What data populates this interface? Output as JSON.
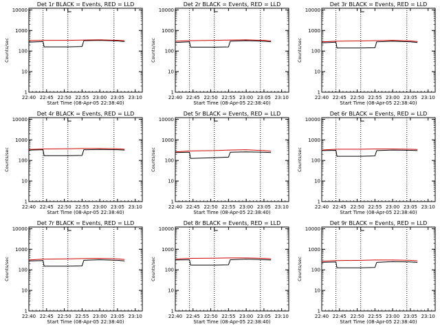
{
  "chart_data": [
    {
      "type": "line",
      "title": "Det 1r BLACK = Events, RED = LLD",
      "xlabel": "Start Time (08-Apr-05 22:38:40)",
      "ylabel": "Counts/sec",
      "y_scale": "log",
      "ylim": [
        1,
        12000
      ],
      "xlim": [
        "22:40",
        "23:12"
      ],
      "x_ticks": [
        "22:40",
        "22:45",
        "22:50",
        "22:55",
        "23:00",
        "23:05",
        "23:10"
      ],
      "y_ticks": [
        "1",
        "10",
        "100",
        "1000",
        "10000"
      ],
      "vlines": [
        "22:44",
        "22:51",
        "23:04"
      ],
      "marker_at": "22:51",
      "series": [
        {
          "name": "Events",
          "color": "#000000",
          "x": [
            "22:40",
            "22:44",
            "22:44.3",
            "22:51",
            "22:55",
            "22:55.5",
            "23:00",
            "23:05",
            "23:07"
          ],
          "values": [
            270,
            290,
            160,
            160,
            165,
            320,
            330,
            310,
            290
          ]
        },
        {
          "name": "LLD",
          "color": "#cc0000",
          "x": [
            "22:40",
            "22:44",
            "22:51",
            "22:55",
            "23:00",
            "23:05",
            "23:07"
          ],
          "values": [
            320,
            330,
            330,
            340,
            350,
            330,
            320
          ]
        }
      ]
    },
    {
      "type": "line",
      "title": "Det 2r BLACK = Events, RED = LLD",
      "xlabel": "Start Time (08-Apr-05 22:38:40)",
      "ylabel": "Counts/sec",
      "y_scale": "log",
      "ylim": [
        1,
        12000
      ],
      "xlim": [
        "22:40",
        "23:12"
      ],
      "x_ticks": [
        "22:40",
        "22:45",
        "22:50",
        "22:55",
        "23:00",
        "23:05",
        "23:10"
      ],
      "y_ticks": [
        "1",
        "10",
        "100",
        "1000",
        "10000"
      ],
      "vlines": [
        "22:44",
        "22:51",
        "23:04"
      ],
      "marker_at": "22:51",
      "series": [
        {
          "name": "Events",
          "color": "#000000",
          "x": [
            "22:40",
            "22:44",
            "22:44.3",
            "22:51",
            "22:55",
            "22:55.5",
            "23:00",
            "23:05",
            "23:07"
          ],
          "values": [
            260,
            280,
            155,
            155,
            160,
            300,
            320,
            300,
            280
          ]
        },
        {
          "name": "LLD",
          "color": "#cc0000",
          "x": [
            "22:40",
            "22:44",
            "22:51",
            "22:55",
            "23:00",
            "23:05",
            "23:07"
          ],
          "values": [
            300,
            320,
            330,
            340,
            350,
            330,
            310
          ]
        }
      ]
    },
    {
      "type": "line",
      "title": "Det 3r BLACK = Events, RED = LLD",
      "xlabel": "Start Time (08-Apr-05 22:38:40)",
      "ylabel": "Counts/sec",
      "y_scale": "log",
      "ylim": [
        1,
        12000
      ],
      "xlim": [
        "22:40",
        "23:12"
      ],
      "x_ticks": [
        "22:40",
        "22:45",
        "22:50",
        "22:55",
        "23:00",
        "23:05",
        "23:10"
      ],
      "y_ticks": [
        "1",
        "10",
        "100",
        "1000",
        "10000"
      ],
      "vlines": [
        "22:44",
        "22:51",
        "23:04"
      ],
      "marker_at": "22:51",
      "series": [
        {
          "name": "Events",
          "color": "#000000",
          "x": [
            "22:40",
            "22:44",
            "22:44.3",
            "22:51",
            "22:55",
            "22:55.5",
            "23:00",
            "23:05",
            "23:07"
          ],
          "values": [
            250,
            270,
            140,
            140,
            145,
            280,
            300,
            280,
            260
          ]
        },
        {
          "name": "LLD",
          "color": "#cc0000",
          "x": [
            "22:40",
            "22:44",
            "22:51",
            "22:55",
            "23:00",
            "23:05",
            "23:07"
          ],
          "values": [
            280,
            300,
            310,
            320,
            330,
            310,
            290
          ]
        }
      ]
    },
    {
      "type": "line",
      "title": "Det 4r BLACK = Events, RED = LLD",
      "xlabel": "Start Time (08-Apr-05 22:38:40)",
      "ylabel": "Counts/sec",
      "y_scale": "log",
      "ylim": [
        1,
        12000
      ],
      "xlim": [
        "22:40",
        "23:12"
      ],
      "x_ticks": [
        "22:40",
        "22:45",
        "22:50",
        "22:55",
        "23:00",
        "23:05",
        "23:10"
      ],
      "y_ticks": [
        "1",
        "10",
        "100",
        "1000",
        "10000"
      ],
      "vlines": [
        "22:44",
        "22:51",
        "23:04"
      ],
      "marker_at": "22:51",
      "series": [
        {
          "name": "Events",
          "color": "#000000",
          "x": [
            "22:40",
            "22:44",
            "22:44.3",
            "22:51",
            "22:55",
            "22:55.5",
            "23:00",
            "23:05",
            "23:07"
          ],
          "values": [
            320,
            330,
            170,
            170,
            175,
            330,
            340,
            330,
            320
          ]
        },
        {
          "name": "LLD",
          "color": "#cc0000",
          "x": [
            "22:40",
            "22:44",
            "22:51",
            "22:55",
            "23:00",
            "23:05",
            "23:07"
          ],
          "values": [
            340,
            360,
            370,
            380,
            380,
            370,
            350
          ]
        }
      ]
    },
    {
      "type": "line",
      "title": "Det 5r BLACK = Events, RED = LLD",
      "xlabel": "Start Time (08-Apr-05 22:38:40)",
      "ylabel": "Counts/sec",
      "y_scale": "log",
      "ylim": [
        1,
        12000
      ],
      "xlim": [
        "22:40",
        "23:12"
      ],
      "x_ticks": [
        "22:40",
        "22:45",
        "22:50",
        "22:55",
        "23:00",
        "23:05",
        "23:10"
      ],
      "y_ticks": [
        "1",
        "10",
        "100",
        "1000",
        "10000"
      ],
      "vlines": [
        "22:44",
        "22:51",
        "23:04"
      ],
      "marker_at": "22:51",
      "series": [
        {
          "name": "Events",
          "color": "#000000",
          "x": [
            "22:40",
            "22:44",
            "22:44.3",
            "22:51",
            "22:55",
            "22:55.5",
            "23:00",
            "23:05",
            "23:07"
          ],
          "values": [
            240,
            250,
            125,
            135,
            145,
            250,
            260,
            250,
            240
          ]
        },
        {
          "name": "LLD",
          "color": "#cc0000",
          "x": [
            "22:40",
            "22:44",
            "22:51",
            "22:55",
            "23:00",
            "23:05",
            "23:07"
          ],
          "values": [
            260,
            290,
            300,
            320,
            330,
            300,
            280
          ]
        }
      ]
    },
    {
      "type": "line",
      "title": "Det 6r BLACK = Events, RED = LLD",
      "xlabel": "Start Time (08-Apr-05 22:38:40)",
      "ylabel": "Counts/sec",
      "y_scale": "log",
      "ylim": [
        1,
        12000
      ],
      "xlim": [
        "22:40",
        "23:12"
      ],
      "x_ticks": [
        "22:40",
        "22:45",
        "22:50",
        "22:55",
        "23:00",
        "23:05",
        "23:10"
      ],
      "y_ticks": [
        "1",
        "10",
        "100",
        "1000",
        "10000"
      ],
      "vlines": [
        "22:44",
        "22:51",
        "23:04"
      ],
      "marker_at": "22:51",
      "series": [
        {
          "name": "Events",
          "color": "#000000",
          "x": [
            "22:40",
            "22:44",
            "22:44.3",
            "22:51",
            "22:55",
            "22:55.5",
            "23:00",
            "23:05",
            "23:07"
          ],
          "values": [
            300,
            310,
            160,
            160,
            165,
            300,
            320,
            310,
            300
          ]
        },
        {
          "name": "LLD",
          "color": "#cc0000",
          "x": [
            "22:40",
            "22:44",
            "22:51",
            "22:55",
            "23:00",
            "23:05",
            "23:07"
          ],
          "values": [
            320,
            350,
            350,
            360,
            360,
            350,
            340
          ]
        }
      ]
    },
    {
      "type": "line",
      "title": "Det 7r BLACK = Events, RED = LLD",
      "xlabel": "Start Time (08-Apr-05 22:38:40)",
      "ylabel": "Counts/sec",
      "y_scale": "log",
      "ylim": [
        1,
        12000
      ],
      "xlim": [
        "22:40",
        "23:12"
      ],
      "x_ticks": [
        "22:40",
        "22:45",
        "22:50",
        "22:55",
        "23:00",
        "23:05",
        "23:10"
      ],
      "y_ticks": [
        "1",
        "10",
        "100",
        "1000",
        "10000"
      ],
      "vlines": [
        "22:44",
        "22:51",
        "23:04"
      ],
      "marker_at": "22:51",
      "series": [
        {
          "name": "Events",
          "color": "#000000",
          "x": [
            "22:40",
            "22:44",
            "22:44.3",
            "22:51",
            "22:55",
            "22:55.5",
            "23:00",
            "23:05",
            "23:07"
          ],
          "values": [
            270,
            280,
            150,
            150,
            155,
            290,
            310,
            290,
            270
          ]
        },
        {
          "name": "LLD",
          "color": "#cc0000",
          "x": [
            "22:40",
            "22:44",
            "22:51",
            "22:55",
            "23:00",
            "23:05",
            "23:07"
          ],
          "values": [
            300,
            330,
            340,
            350,
            360,
            340,
            320
          ]
        }
      ]
    },
    {
      "type": "line",
      "title": "Det 8r BLACK = Events, RED = LLD",
      "xlabel": "Start Time (08-Apr-05 22:38:40)",
      "ylabel": "Counts/sec",
      "y_scale": "log",
      "ylim": [
        1,
        12000
      ],
      "xlim": [
        "22:40",
        "23:12"
      ],
      "x_ticks": [
        "22:40",
        "22:45",
        "22:50",
        "22:55",
        "23:00",
        "23:05",
        "23:10"
      ],
      "y_ticks": [
        "1",
        "10",
        "100",
        "1000",
        "10000"
      ],
      "vlines": [
        "22:44",
        "22:51",
        "23:04"
      ],
      "marker_at": "22:51",
      "series": [
        {
          "name": "Events",
          "color": "#000000",
          "x": [
            "22:40",
            "22:44",
            "22:44.3",
            "22:51",
            "22:55",
            "22:55.5",
            "23:00",
            "23:05",
            "23:07"
          ],
          "values": [
            300,
            310,
            170,
            170,
            175,
            310,
            330,
            310,
            300
          ]
        },
        {
          "name": "LLD",
          "color": "#cc0000",
          "x": [
            "22:40",
            "22:44",
            "22:51",
            "22:55",
            "23:00",
            "23:05",
            "23:07"
          ],
          "values": [
            330,
            360,
            370,
            380,
            380,
            360,
            340
          ]
        }
      ]
    },
    {
      "type": "line",
      "title": "Det 9r BLACK = Events, RED = LLD",
      "xlabel": "Start Time (08-Apr-05 22:38:40)",
      "ylabel": "Counts/sec",
      "y_scale": "log",
      "ylim": [
        1,
        12000
      ],
      "xlim": [
        "22:40",
        "23:12"
      ],
      "x_ticks": [
        "22:40",
        "22:45",
        "22:50",
        "22:55",
        "23:00",
        "23:05",
        "23:10"
      ],
      "y_ticks": [
        "1",
        "10",
        "100",
        "1000",
        "10000"
      ],
      "vlines": [
        "22:44",
        "22:51",
        "23:04"
      ],
      "marker_at": "22:51",
      "series": [
        {
          "name": "Events",
          "color": "#000000",
          "x": [
            "22:40",
            "22:44",
            "22:44.3",
            "22:51",
            "22:55",
            "22:55.5",
            "23:00",
            "23:05",
            "23:07"
          ],
          "values": [
            230,
            240,
            125,
            125,
            130,
            230,
            250,
            240,
            230
          ]
        },
        {
          "name": "LLD",
          "color": "#cc0000",
          "x": [
            "22:40",
            "22:44",
            "22:51",
            "22:55",
            "23:00",
            "23:05",
            "23:07"
          ],
          "values": [
            260,
            280,
            290,
            300,
            300,
            290,
            270
          ]
        }
      ]
    }
  ]
}
